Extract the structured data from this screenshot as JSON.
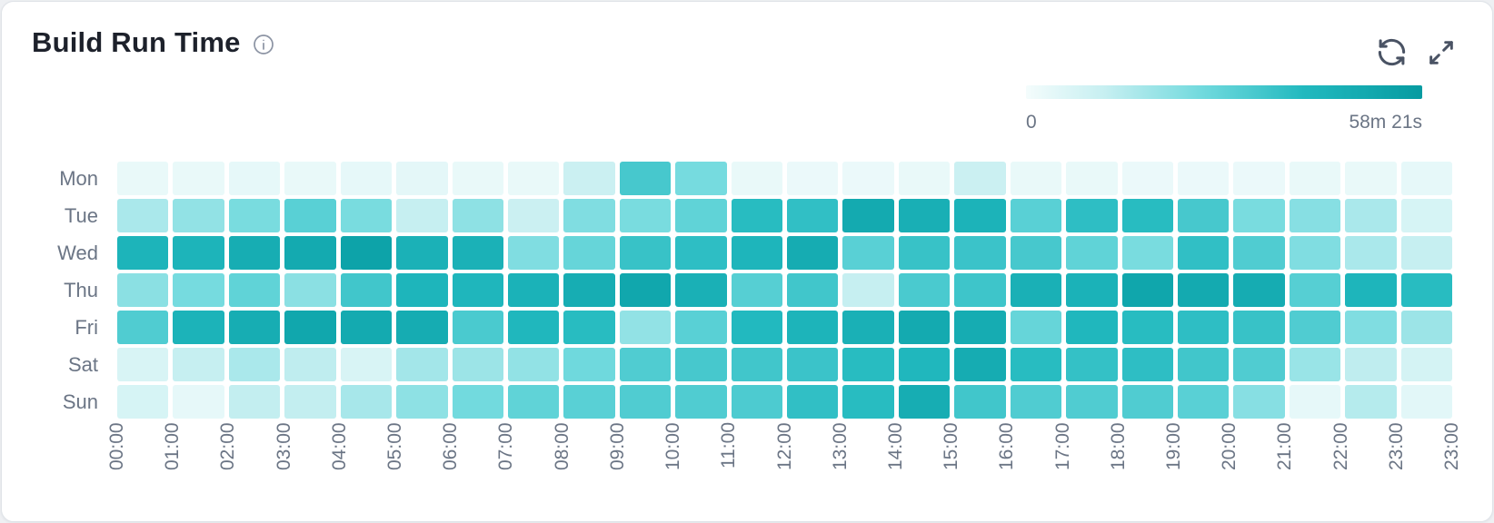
{
  "card": {
    "title": "Build Run Time"
  },
  "legend": {
    "min_label": "0",
    "max_label": "58m 21s"
  },
  "icons": {
    "info": "circled-letter-i",
    "refresh": "two-circular-arrows",
    "expand": "diagonal-outward-arrows"
  },
  "colors": {
    "title_text": "#1d212b",
    "muted_text": "#6b7585",
    "icon_stroke": "#4a5364",
    "info_icon_stroke": "#8b93a3",
    "card_border": "#dfe3e8",
    "scale_stops": [
      [
        0,
        "#f4fcfc"
      ],
      [
        0.2,
        "#c6eff1"
      ],
      [
        0.45,
        "#6fd9dd"
      ],
      [
        0.7,
        "#22b9bf"
      ],
      [
        1,
        "#069ba1"
      ]
    ]
  },
  "chart_data": {
    "type": "heatmap",
    "title": "Build Run Time",
    "rows": [
      "Mon",
      "Tue",
      "Wed",
      "Thu",
      "Fri",
      "Sat",
      "Sun"
    ],
    "columns": [
      "00:00",
      "01:00",
      "02:00",
      "03:00",
      "04:00",
      "05:00",
      "06:00",
      "07:00",
      "08:00",
      "09:00",
      "10:00",
      "11:00",
      "12:00",
      "13:00",
      "14:00",
      "15:00",
      "16:00",
      "17:00",
      "18:00",
      "19:00",
      "20:00",
      "21:00",
      "22:00",
      "23:00"
    ],
    "x_axis_tick_labels": [
      "00:00",
      "01:00",
      "02:00",
      "03:00",
      "04:00",
      "05:00",
      "06:00",
      "07:00",
      "08:00",
      "09:00",
      "10:00",
      "11:00",
      "12:00",
      "13:00",
      "14:00",
      "15:00",
      "16:00",
      "17:00",
      "18:00",
      "19:00",
      "20:00",
      "21:00",
      "22:00",
      "23:00",
      "23:00"
    ],
    "values_normalized": [
      [
        0.05,
        0.05,
        0.06,
        0.05,
        0.06,
        0.07,
        0.05,
        0.05,
        0.18,
        0.58,
        0.43,
        0.05,
        0.04,
        0.04,
        0.05,
        0.18,
        0.05,
        0.05,
        0.04,
        0.04,
        0.04,
        0.05,
        0.05,
        0.06
      ],
      [
        0.28,
        0.35,
        0.42,
        0.52,
        0.42,
        0.2,
        0.36,
        0.18,
        0.4,
        0.42,
        0.5,
        0.68,
        0.65,
        0.85,
        0.8,
        0.76,
        0.52,
        0.66,
        0.68,
        0.58,
        0.42,
        0.38,
        0.28,
        0.13
      ],
      [
        0.75,
        0.75,
        0.82,
        0.85,
        0.92,
        0.78,
        0.78,
        0.4,
        0.48,
        0.63,
        0.66,
        0.74,
        0.83,
        0.52,
        0.63,
        0.62,
        0.58,
        0.5,
        0.42,
        0.65,
        0.55,
        0.4,
        0.28,
        0.2
      ],
      [
        0.37,
        0.43,
        0.5,
        0.37,
        0.6,
        0.74,
        0.73,
        0.77,
        0.82,
        0.88,
        0.79,
        0.53,
        0.6,
        0.2,
        0.57,
        0.61,
        0.79,
        0.77,
        0.89,
        0.85,
        0.83,
        0.53,
        0.74,
        0.68
      ],
      [
        0.55,
        0.76,
        0.82,
        0.88,
        0.85,
        0.83,
        0.57,
        0.72,
        0.68,
        0.35,
        0.52,
        0.7,
        0.75,
        0.79,
        0.85,
        0.83,
        0.48,
        0.72,
        0.68,
        0.66,
        0.63,
        0.55,
        0.4,
        0.32
      ],
      [
        0.12,
        0.2,
        0.28,
        0.22,
        0.12,
        0.3,
        0.32,
        0.35,
        0.45,
        0.55,
        0.58,
        0.6,
        0.62,
        0.68,
        0.72,
        0.83,
        0.68,
        0.64,
        0.66,
        0.6,
        0.55,
        0.33,
        0.22,
        0.14
      ],
      [
        0.13,
        0.06,
        0.21,
        0.21,
        0.29,
        0.36,
        0.44,
        0.5,
        0.52,
        0.55,
        0.55,
        0.56,
        0.65,
        0.68,
        0.82,
        0.6,
        0.55,
        0.55,
        0.55,
        0.52,
        0.38,
        0.06,
        0.25,
        0.08
      ]
    ],
    "value_scale": {
      "min_label": "0",
      "max_label": "58m 21s",
      "unit": "build run time"
    },
    "legend_position": "top-right",
    "x_axis_label_rotation": -90
  }
}
